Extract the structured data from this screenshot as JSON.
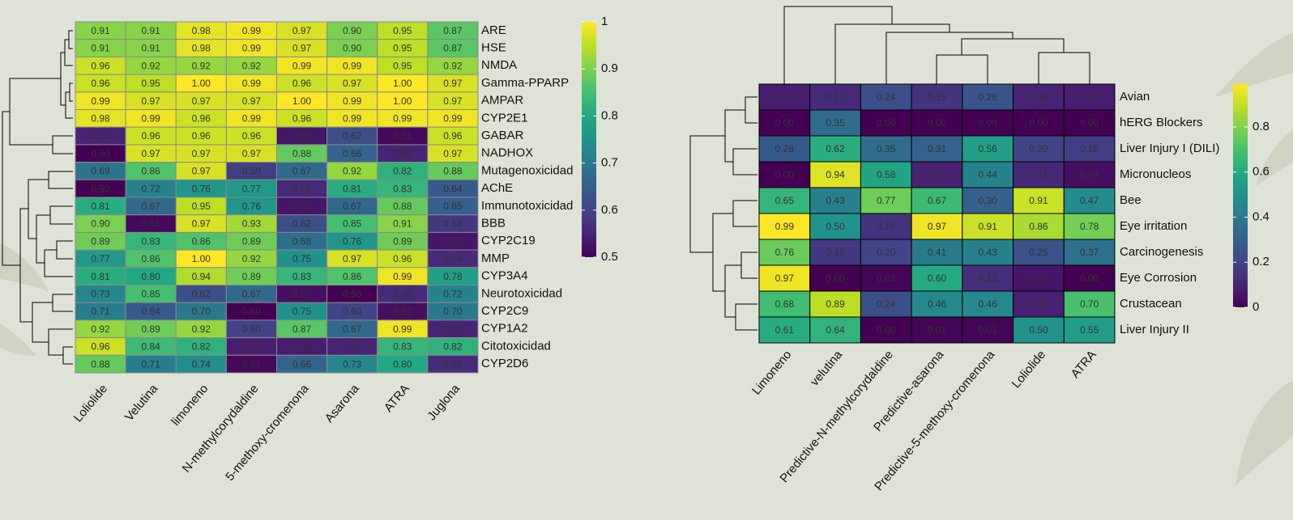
{
  "chart_data": [
    {
      "type": "heatmap",
      "colormap": "viridis",
      "rows": [
        "ARE",
        "HSE",
        "NMDA",
        "Gamma-PPARP",
        "AMPAR",
        "CYP2E1",
        "GABAR",
        "NADHOX",
        "Mutagenoxicidad",
        "AChE",
        "Immunotoxicidad",
        "BBB",
        "CYP2C19",
        "MMP",
        "CYP3A4",
        "Neurotoxicidad",
        "CYP2C9",
        "CYP1A2",
        "Citotoxicidad",
        "CYP2D6"
      ],
      "columns": [
        "Loliolide",
        "Velutina",
        "limoneno",
        "N-methylcorydaldine",
        "5-methoxy-cromenona",
        "Asarona",
        "ATRA",
        "Juglona"
      ],
      "values": [
        [
          0.91,
          0.91,
          0.98,
          0.99,
          0.97,
          0.9,
          0.95,
          0.87
        ],
        [
          0.91,
          0.91,
          0.98,
          0.99,
          0.97,
          0.9,
          0.95,
          0.87
        ],
        [
          0.96,
          0.92,
          0.92,
          0.92,
          0.99,
          0.99,
          0.95,
          0.92
        ],
        [
          0.96,
          0.95,
          1,
          0.99,
          0.96,
          0.97,
          1,
          0.97
        ],
        [
          0.99,
          0.97,
          0.97,
          0.97,
          1,
          0.99,
          1,
          0.97
        ],
        [
          0.98,
          0.99,
          0.96,
          0.99,
          0.96,
          0.99,
          0.99,
          0.99
        ],
        [
          0.55,
          0.96,
          0.96,
          0.96,
          0.53,
          0.62,
          0.51,
          0.96
        ],
        [
          0.5,
          0.97,
          0.97,
          0.97,
          0.88,
          0.66,
          0.55,
          0.97
        ],
        [
          0.69,
          0.86,
          0.97,
          0.59,
          0.67,
          0.92,
          0.82,
          0.88
        ],
        [
          0.5,
          0.72,
          0.76,
          0.77,
          0.56,
          0.81,
          0.83,
          0.64
        ],
        [
          0.81,
          0.67,
          0.95,
          0.76,
          0.53,
          0.67,
          0.88,
          0.65
        ],
        [
          0.9,
          0.51,
          0.97,
          0.93,
          0.62,
          0.85,
          0.91,
          0.58
        ],
        [
          0.89,
          0.83,
          0.86,
          0.89,
          0.68,
          0.76,
          0.89,
          0.53
        ],
        [
          0.77,
          0.86,
          1,
          0.92,
          0.75,
          0.97,
          0.96,
          0.56
        ],
        [
          0.81,
          0.8,
          0.94,
          0.89,
          0.83,
          0.86,
          0.99,
          0.78
        ],
        [
          0.73,
          0.85,
          0.62,
          0.67,
          0.52,
          0.5,
          0.56,
          0.72
        ],
        [
          0.71,
          0.64,
          0.7,
          0.5,
          0.75,
          0.6,
          0.52,
          0.7
        ],
        [
          0.92,
          0.89,
          0.92,
          0.6,
          0.87,
          0.67,
          0.99,
          0.55
        ],
        [
          0.96,
          0.84,
          0.82,
          0.54,
          0.54,
          0.55,
          0.83,
          0.82
        ],
        [
          0.88,
          0.71,
          0.74,
          0.51,
          0.66,
          0.73,
          0.8,
          0.56
        ]
      ],
      "value_labels": [
        [
          "0.91",
          "0.91",
          "0.98",
          "0.99",
          "0.97",
          "0.90",
          "0.95",
          "0.87"
        ],
        [
          "0.91",
          "0.91",
          "0.98",
          "0.99",
          "0.97",
          "0.90",
          "0.95",
          "0.87"
        ],
        [
          "0.96",
          "0.92",
          "0.92",
          "0.92",
          "0.99",
          "0.99",
          "0.95",
          "0.92"
        ],
        [
          "0.96",
          "0.95",
          "1.00",
          "0.99",
          "0.96",
          "0.97",
          "1.00",
          "0.97"
        ],
        [
          "0.99",
          "0.97",
          "0.97",
          "0.97",
          "1.00",
          "0.99",
          "1.00",
          "0.97"
        ],
        [
          "0.98",
          "0.99",
          "0.96",
          "0.99",
          "0.96",
          "0.99",
          "0.99",
          "0.99"
        ],
        [
          "0.55",
          "0.96",
          "0.96",
          "0.96",
          "0.53",
          "0.62",
          "0.51",
          "0.96"
        ],
        [
          "0.50",
          "0.97",
          "0.97",
          "0.97",
          "0.88",
          "0.66",
          "0.55",
          "0.97"
        ],
        [
          "0.69",
          "0.86",
          "0.97",
          "0.59",
          "0.67",
          "0.92",
          "0.82",
          "0.88"
        ],
        [
          "0.50",
          "0.72",
          "0.76",
          "0.77",
          "0.56",
          "0.81",
          "0.83",
          "0.64"
        ],
        [
          "0.81",
          "0.67",
          "0.95",
          "0.76",
          "0.53",
          "0.67",
          "0.88",
          "0.65"
        ],
        [
          "0.90",
          "0.51",
          "0.97",
          "0.93",
          "0.62",
          "0.85",
          "0.91",
          "0.58"
        ],
        [
          "0.89",
          "0.83",
          "0.86",
          "0.89",
          "0.68",
          "0.76",
          "0.89",
          "0.53"
        ],
        [
          "0.77",
          "0.86",
          "1.00",
          "0.92",
          "0.75",
          "0.97",
          "0.96",
          "0.56"
        ],
        [
          "0.81",
          "0.80",
          "0.94",
          "0.89",
          "0.83",
          "0.86",
          "0.99",
          "0.78"
        ],
        [
          "0.73",
          "0.85",
          "0.62",
          "0.67",
          "0.52",
          "0.50",
          "0.56",
          "0.72"
        ],
        [
          "0.71",
          "0.64",
          "0.70",
          "0.50",
          "0.75",
          "0.60",
          "0.52",
          "0.70"
        ],
        [
          "0.92",
          "0.89",
          "0.92",
          "0.60",
          "0.87",
          "0.67",
          "0.99",
          "0.55"
        ],
        [
          "0.96",
          "0.84",
          "0.82",
          "0.54",
          "0.54",
          "0.55",
          "0.83",
          "0.82"
        ],
        [
          "0.88",
          "0.71",
          "0.74",
          "0.51",
          "0.66",
          "0.73",
          "0.80",
          "0.56"
        ]
      ],
      "clim": [
        0.5,
        1
      ],
      "cticks": [
        0.5,
        0.6,
        0.7,
        0.8,
        0.9,
        1
      ]
    },
    {
      "type": "heatmap",
      "colormap": "viridis",
      "rows": [
        "Avian",
        "hERG Blockers",
        "Liver Injury I (DILI)",
        "Micronucleos",
        "Bee",
        "Eye irritation",
        "Carcinogenesis",
        "Eye Corrosion",
        "Crustacean",
        "Liver Injury II"
      ],
      "columns": [
        "Limoneno",
        "velutina",
        "Predictive-N-methylcorydaldine",
        "Predictive-asarona",
        "Predictive-5-methoxy-cromenona",
        "Loliolide",
        "ATRA"
      ],
      "values": [
        [
          0.08,
          0.12,
          0.24,
          0.15,
          0.26,
          0.1,
          0.08
        ],
        [
          0,
          0.35,
          0,
          0,
          0,
          0,
          0
        ],
        [
          0.28,
          0.62,
          0.35,
          0.31,
          0.56,
          0.2,
          0.18
        ],
        [
          0,
          0.94,
          0.58,
          0.09,
          0.44,
          0.11,
          0.04
        ],
        [
          0.65,
          0.43,
          0.77,
          0.67,
          0.3,
          0.91,
          0.47
        ],
        [
          0.99,
          0.5,
          0.15,
          0.97,
          0.91,
          0.86,
          0.78
        ],
        [
          0.76,
          0.16,
          0.2,
          0.41,
          0.43,
          0.25,
          0.37
        ],
        [
          0.97,
          0,
          0.01,
          0.6,
          0.13,
          0.06,
          0
        ],
        [
          0.68,
          0.89,
          0.24,
          0.46,
          0.46,
          0.09,
          0.7
        ],
        [
          0.61,
          0.64,
          0,
          0.01,
          0.01,
          0.5,
          0.55
        ]
      ],
      "value_labels": [
        [
          "0.08",
          "0.12",
          "0.24",
          "0.15",
          "0.26",
          "0.10",
          "0.08"
        ],
        [
          "0.00",
          "0.35",
          "0.00",
          "0.00",
          "0.00",
          "0.00",
          "0.00"
        ],
        [
          "0.28",
          "0.62",
          "0.35",
          "0.31",
          "0.56",
          "0.20",
          "0.18"
        ],
        [
          "0.00",
          "0.94",
          "0.58",
          "0.09",
          "0.44",
          "0.11",
          "0.04"
        ],
        [
          "0.65",
          "0.43",
          "0.77",
          "0.67",
          "0.30",
          "0.91",
          "0.47"
        ],
        [
          "0.99",
          "0.50",
          "0.15",
          "0.97",
          "0.91",
          "0.86",
          "0.78"
        ],
        [
          "0.76",
          "0.16",
          "0.20",
          "0.41",
          "0.43",
          "0.25",
          "0.37"
        ],
        [
          "0.97",
          "0.00",
          "0.01",
          "0.60",
          "0.13",
          "0.06",
          "0.00"
        ],
        [
          "0.68",
          "0.89",
          "0.24",
          "0.46",
          "0.46",
          "0.09",
          "0.70"
        ],
        [
          "0.61",
          "0.64",
          "0.00",
          "0.01",
          "0.01",
          "0.50",
          "0.55"
        ]
      ],
      "clim": [
        0,
        0.99
      ],
      "cticks": [
        0,
        0.2,
        0.4,
        0.6,
        0.8
      ]
    }
  ]
}
